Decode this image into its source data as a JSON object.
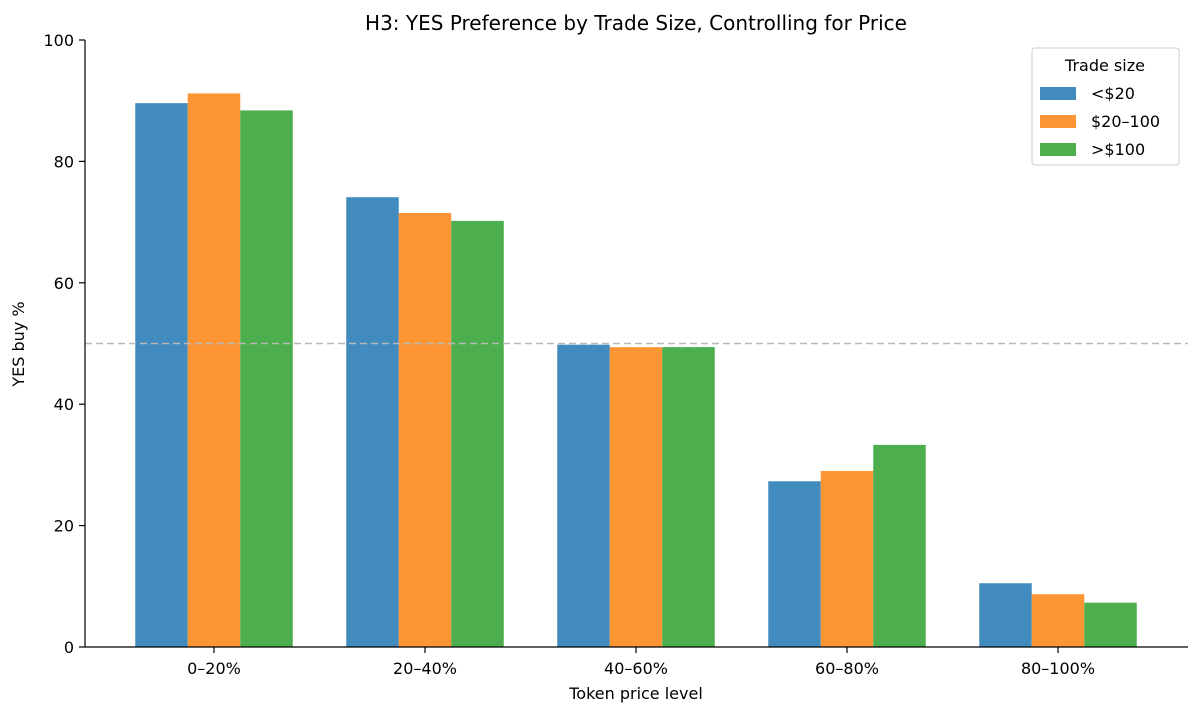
{
  "chart_data": {
    "type": "bar",
    "title": "H3: YES Preference by Trade Size, Controlling for Price",
    "xlabel": "Token price level",
    "ylabel": "YES buy %",
    "categories": [
      "0–20%",
      "20–40%",
      "40–60%",
      "60–80%",
      "80–100%"
    ],
    "series": [
      {
        "name": "<$20",
        "color": "#428bbe",
        "values": [
          89.6,
          74.1,
          49.8,
          27.3,
          10.5
        ]
      },
      {
        "name": "$20–100",
        "color": "#fe9535",
        "values": [
          91.2,
          71.5,
          49.4,
          29.0,
          8.7
        ]
      },
      {
        "name": ">$100",
        "color": "#4cae4c",
        "values": [
          88.4,
          70.2,
          49.4,
          33.3,
          7.3
        ]
      }
    ],
    "ylim": [
      0,
      100
    ],
    "yticks": [
      0,
      20,
      40,
      60,
      80,
      100
    ],
    "reference_line": {
      "y": 50,
      "style": "dashed",
      "color": "#b8b8b8"
    },
    "legend": {
      "title": "Trade size",
      "position": "top-right"
    },
    "grid": false
  }
}
